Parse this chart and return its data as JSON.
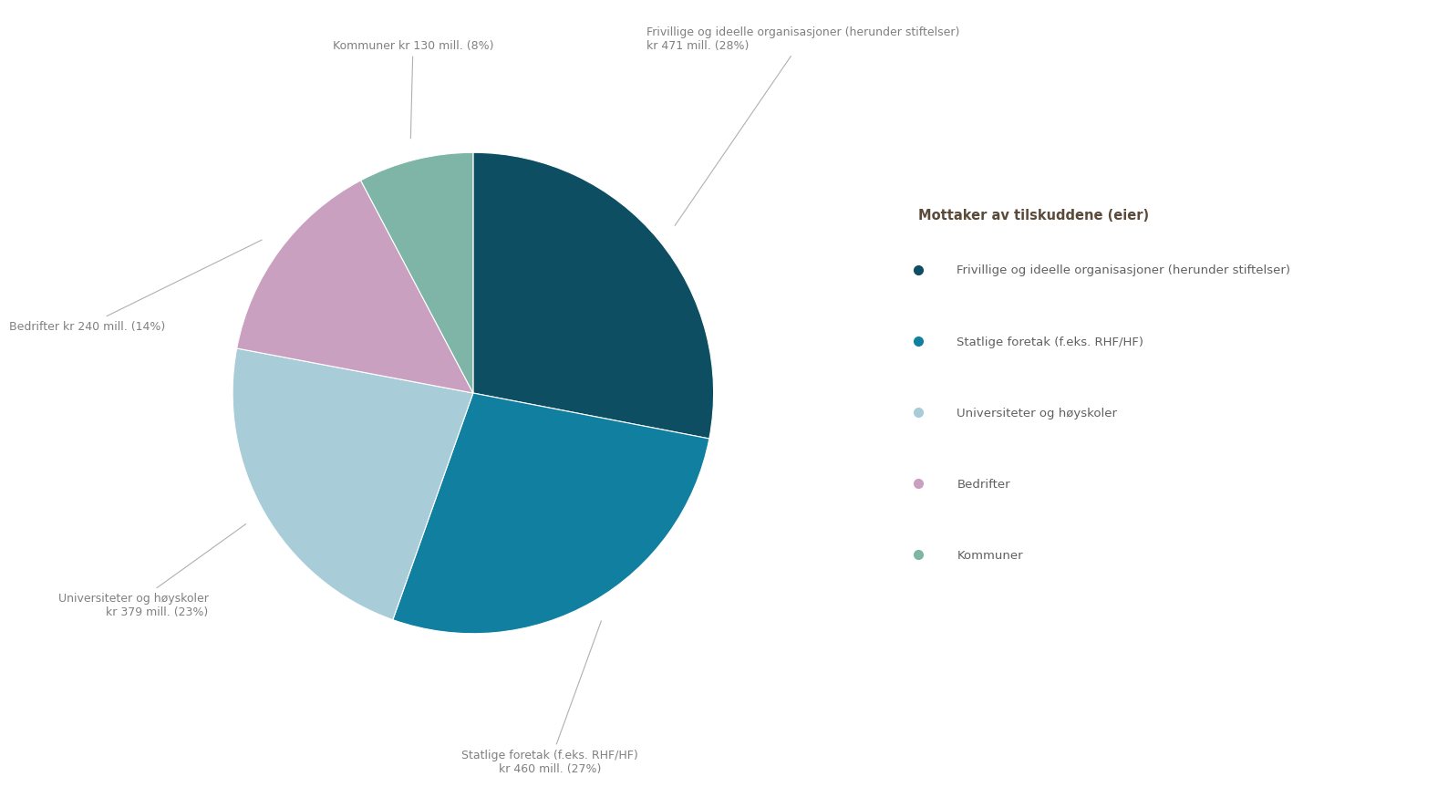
{
  "title": "Mottaker av tilskuddene (eier)",
  "labels": [
    "Frivillige og ideelle organisasjoner (herunder stiftelser)",
    "Statlige foretak (f.eks. RHF/HF)",
    "Universiteter og høyskoler",
    "Bedrifter",
    "Kommuner"
  ],
  "values": [
    471,
    460,
    379,
    240,
    130
  ],
  "colors": [
    "#0d4e63",
    "#1180a0",
    "#a8ccd8",
    "#c9a0bf",
    "#7eb5a6"
  ],
  "annotation_texts": [
    "Frivillige og ideelle organisasjoner (herunder stiftelser)\nkr 471 mill. (28%)",
    "Statlige foretak (f.eks. RHF/HF)\nkr 460 mill. (27%)",
    "Universiteter og høyskoler\nkr 379 mill. (23%)",
    "Bedrifter kr 240 mill. (14%)",
    "Kommuner kr 130 mill. (8%)"
  ],
  "background_color": "#ffffff",
  "text_color": "#808080",
  "legend_title_color": "#5a4a3a",
  "legend_text_color": "#606060",
  "startangle": 90,
  "counterclock": false
}
